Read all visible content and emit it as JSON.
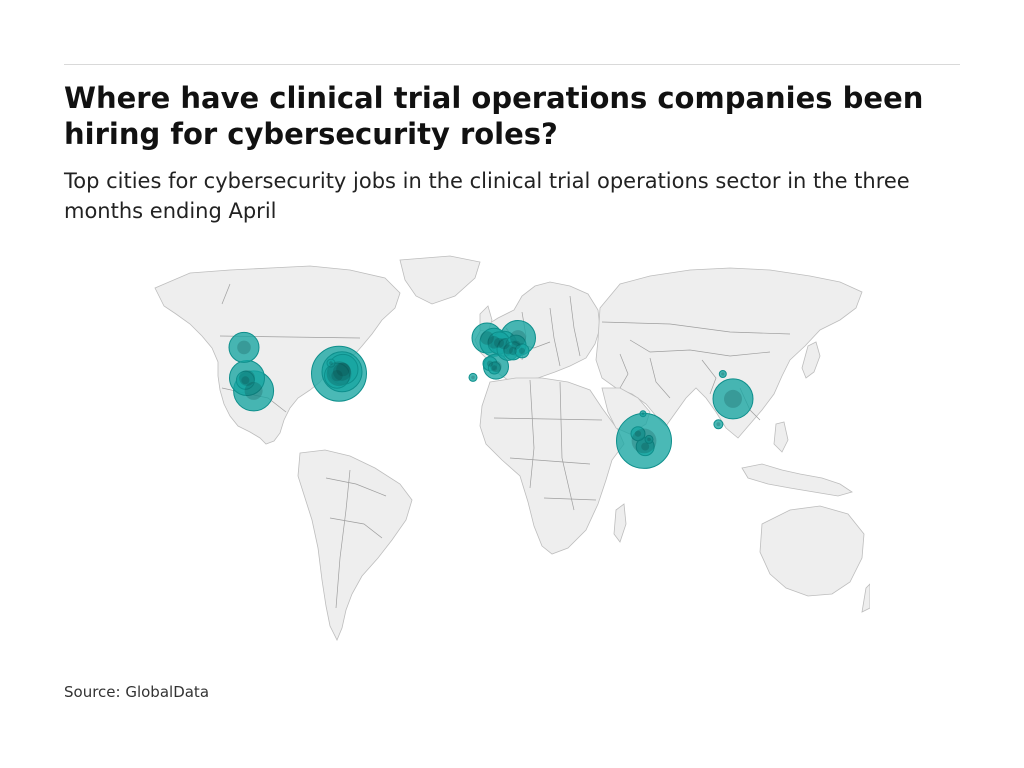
{
  "header": {
    "title": "Where have clinical trial operations companies been hiring for cybersecurity roles?",
    "subtitle": "Top cities for cybersecurity jobs in the clinical trial operations sector in the three months ending April"
  },
  "footer": {
    "source": "Source: GlobalData"
  },
  "colors": {
    "bubble": "#17a5a2",
    "bubble_stroke": "#0e8f8c",
    "land": "#eeeeee",
    "border": "#9e9e9e"
  },
  "chart_data": {
    "type": "bubble-map",
    "projection": "equirectangular",
    "bubbles": [
      {
        "lon": -123.0,
        "lat": 49.2,
        "size": 30
      },
      {
        "lon": -121.5,
        "lat": 38.5,
        "size": 35
      },
      {
        "lon": -122.3,
        "lat": 37.7,
        "size": 18
      },
      {
        "lon": -118.2,
        "lat": 34.0,
        "size": 40
      },
      {
        "lon": -79.5,
        "lat": 43.7,
        "size": 8
      },
      {
        "lon": -75.5,
        "lat": 40.0,
        "size": 55
      },
      {
        "lon": -74.0,
        "lat": 40.7,
        "size": 40
      },
      {
        "lon": -73.5,
        "lat": 41.5,
        "size": 30
      },
      {
        "lon": -76.5,
        "lat": 39.3,
        "size": 25
      },
      {
        "lon": -1.5,
        "lat": 52.5,
        "size": 30
      },
      {
        "lon": 2.0,
        "lat": 51.0,
        "size": 28
      },
      {
        "lon": 4.5,
        "lat": 50.8,
        "size": 22
      },
      {
        "lon": 7.0,
        "lat": 50.5,
        "size": 25
      },
      {
        "lon": 9.0,
        "lat": 48.5,
        "size": 22
      },
      {
        "lon": 11.5,
        "lat": 48.0,
        "size": 18
      },
      {
        "lon": 14.0,
        "lat": 52.5,
        "size": 35
      },
      {
        "lon": 13.0,
        "lat": 50.0,
        "size": 20
      },
      {
        "lon": 16.0,
        "lat": 48.0,
        "size": 14
      },
      {
        "lon": 0.0,
        "lat": 43.5,
        "size": 14
      },
      {
        "lon": 3.0,
        "lat": 42.5,
        "size": 25
      },
      {
        "lon": 2.2,
        "lat": 42.0,
        "size": 12
      },
      {
        "lon": -8.5,
        "lat": 38.7,
        "size": 8
      },
      {
        "lon": 76.5,
        "lat": 26.0,
        "size": 6
      },
      {
        "lon": 77.0,
        "lat": 16.5,
        "size": 55
      },
      {
        "lon": 74.0,
        "lat": 19.0,
        "size": 14
      },
      {
        "lon": 77.6,
        "lat": 14.5,
        "size": 18
      },
      {
        "lon": 79.5,
        "lat": 17.0,
        "size": 8
      },
      {
        "lon": 116.4,
        "lat": 39.9,
        "size": 7
      },
      {
        "lon": 121.5,
        "lat": 31.2,
        "size": 40
      },
      {
        "lon": 114.2,
        "lat": 22.3,
        "size": 9
      }
    ]
  }
}
